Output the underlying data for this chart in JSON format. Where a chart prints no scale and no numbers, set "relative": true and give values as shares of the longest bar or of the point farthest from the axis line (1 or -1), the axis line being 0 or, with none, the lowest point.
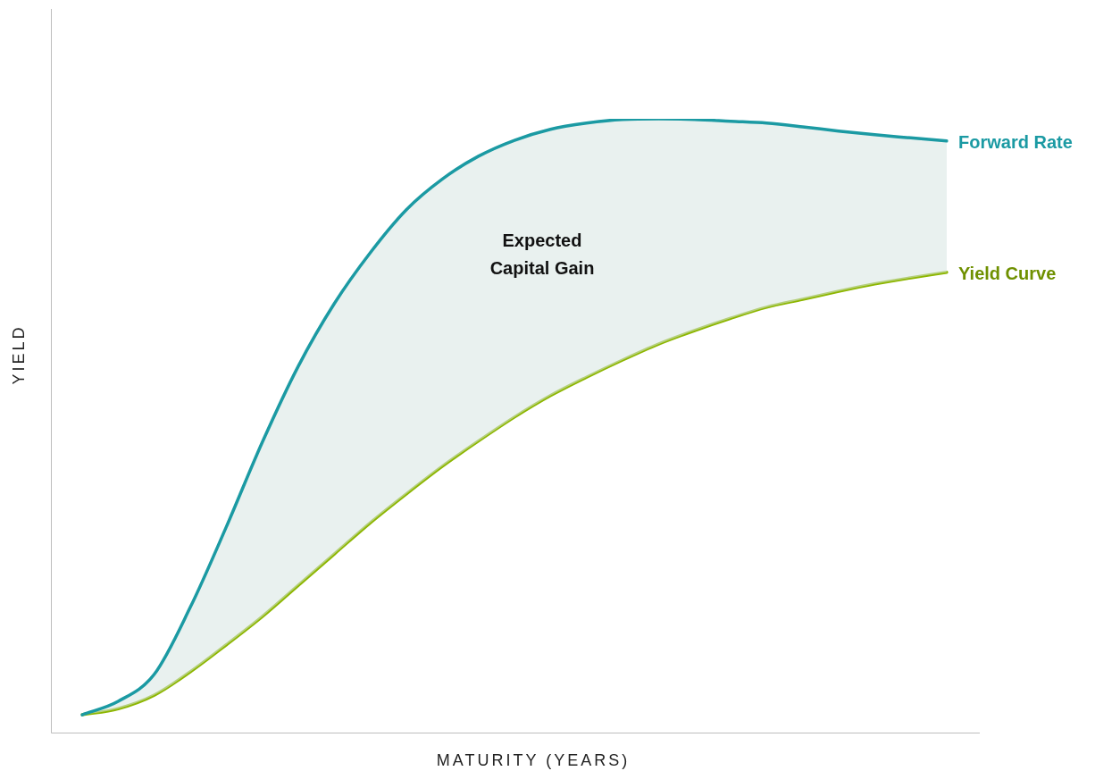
{
  "chart_data": {
    "type": "line",
    "relative": true,
    "xlabel": "MATURITY (YEARS)",
    "ylabel": "YIELD",
    "annotations": [
      "Expected Capital Gain"
    ],
    "legend": false,
    "marker": "none",
    "line_style": "solid",
    "categories": [
      null,
      null,
      null,
      null,
      null,
      null,
      null,
      null,
      null,
      null,
      null,
      null,
      null,
      null,
      null,
      null,
      null,
      null,
      null,
      null,
      null,
      null,
      null,
      null,
      null
    ],
    "series": [
      {
        "name": "Forward Rate",
        "color": "#1b9aa3",
        "values": [
          0.029,
          0.051,
          0.095,
          0.204,
          0.335,
          0.473,
          0.597,
          0.699,
          0.782,
          0.852,
          0.902,
          0.939,
          0.965,
          0.983,
          0.993,
          0.999,
          1,
          0.999,
          0.996,
          0.993,
          0.987,
          0.98,
          0.974,
          0.969,
          0.964
        ]
      },
      {
        "name": "Yield Curve",
        "color": "#8db600",
        "values": [
          0.029,
          0.039,
          0.061,
          0.099,
          0.143,
          0.189,
          0.24,
          0.291,
          0.342,
          0.389,
          0.434,
          0.475,
          0.514,
          0.549,
          0.579,
          0.607,
          0.633,
          0.655,
          0.675,
          0.693,
          0.706,
          0.719,
          0.731,
          0.741,
          0.75
        ]
      }
    ]
  }
}
